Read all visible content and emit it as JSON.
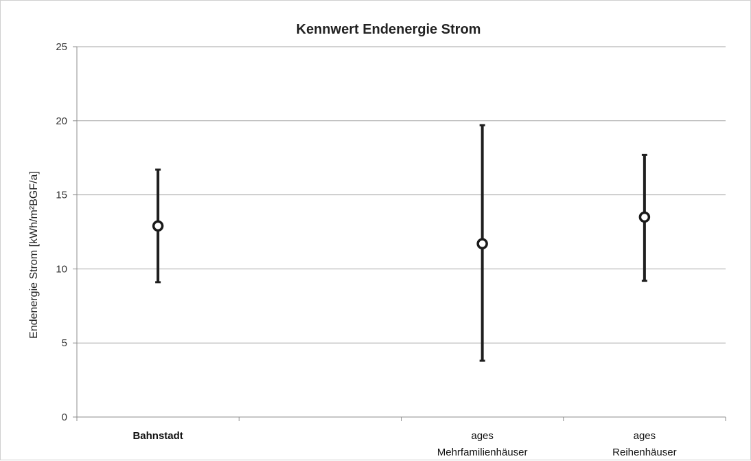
{
  "chart_data": {
    "type": "scatter",
    "title": "Kennwert Endenergie Strom",
    "ylabel": "Endenergie Strom [kWh/m²BGF/a]",
    "xlabel": "",
    "ylim": [
      0,
      25
    ],
    "y_ticks": [
      "0",
      "5",
      "10",
      "15",
      "20",
      "25"
    ],
    "grid": true,
    "categories": [
      {
        "label_lines": [
          "Bahnstadt"
        ],
        "bold": true
      },
      {
        "label_lines": [
          ""
        ],
        "bold": false
      },
      {
        "label_lines": [
          "ages",
          "Mehrfamilienhäuser"
        ],
        "bold": false
      },
      {
        "label_lines": [
          "ages",
          "Reihenhäuser"
        ],
        "bold": false
      }
    ],
    "series": [
      {
        "points": [
          {
            "category_index": 0,
            "value": 12.9,
            "min": 9.1,
            "max": 16.7
          },
          {
            "category_index": 2,
            "value": 11.7,
            "min": 3.8,
            "max": 19.7
          },
          {
            "category_index": 3,
            "value": 13.5,
            "min": 9.2,
            "max": 17.7
          }
        ]
      }
    ]
  },
  "colors": {
    "grid": "#a6a6a6",
    "axis": "#8c8c8c",
    "marker_stroke": "#1a1a1a",
    "marker_fill": "#ffffff",
    "error_bar": "#1f1f1f"
  }
}
